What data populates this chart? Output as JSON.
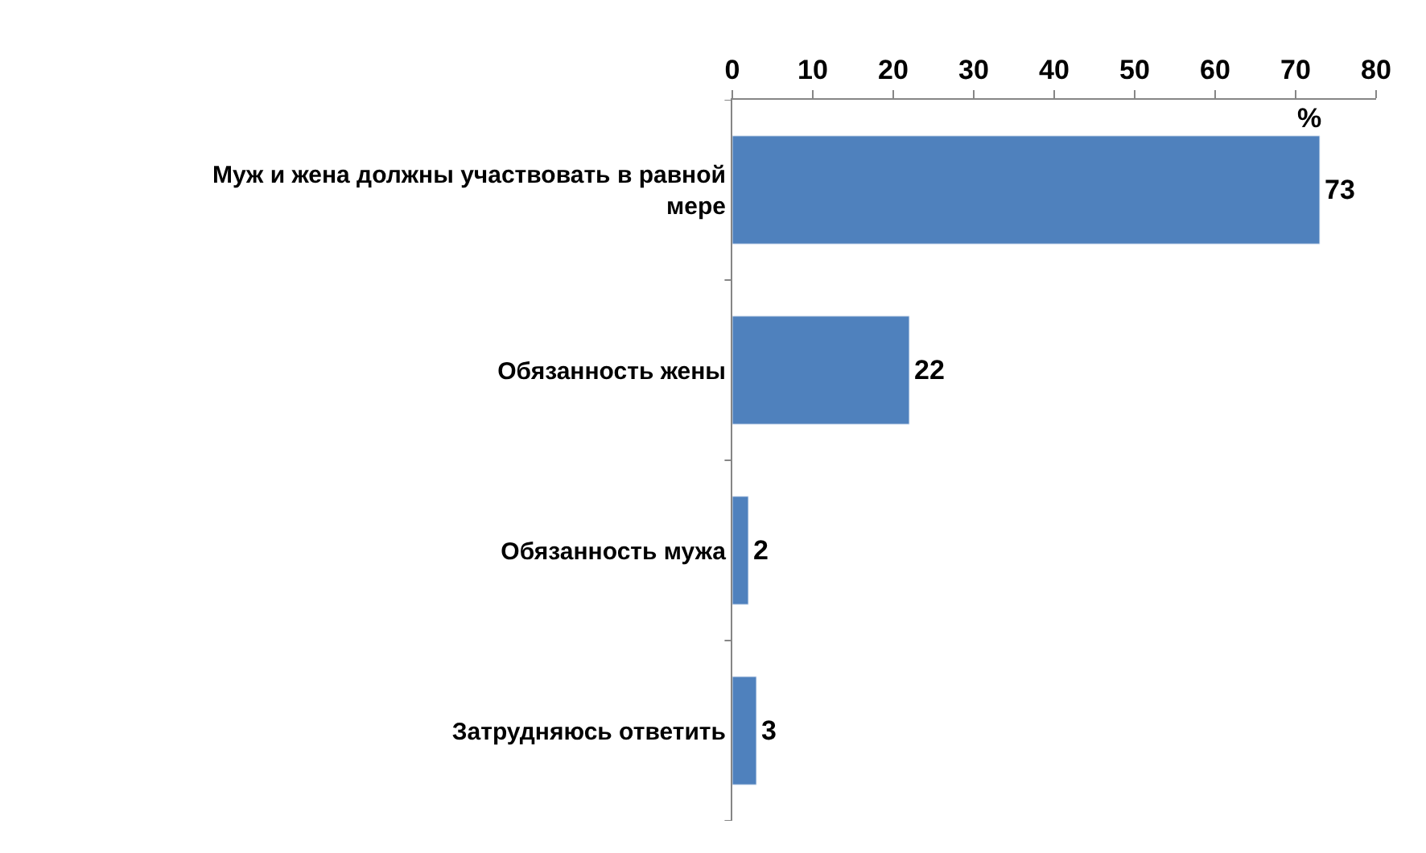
{
  "chart_data": {
    "type": "bar",
    "orientation": "horizontal",
    "categories": [
      "Муж и жена должны участвовать в равной мере",
      "Обязанность жены",
      "Обязанность мужа",
      "Затрудняюсь ответить"
    ],
    "values": [
      73,
      22,
      2,
      3
    ],
    "color": "#4f81bd",
    "xlim": [
      0,
      80
    ],
    "xticks": [
      0,
      10,
      20,
      30,
      40,
      50,
      60,
      70,
      80
    ],
    "xlabel": "%",
    "data_labels": true
  }
}
